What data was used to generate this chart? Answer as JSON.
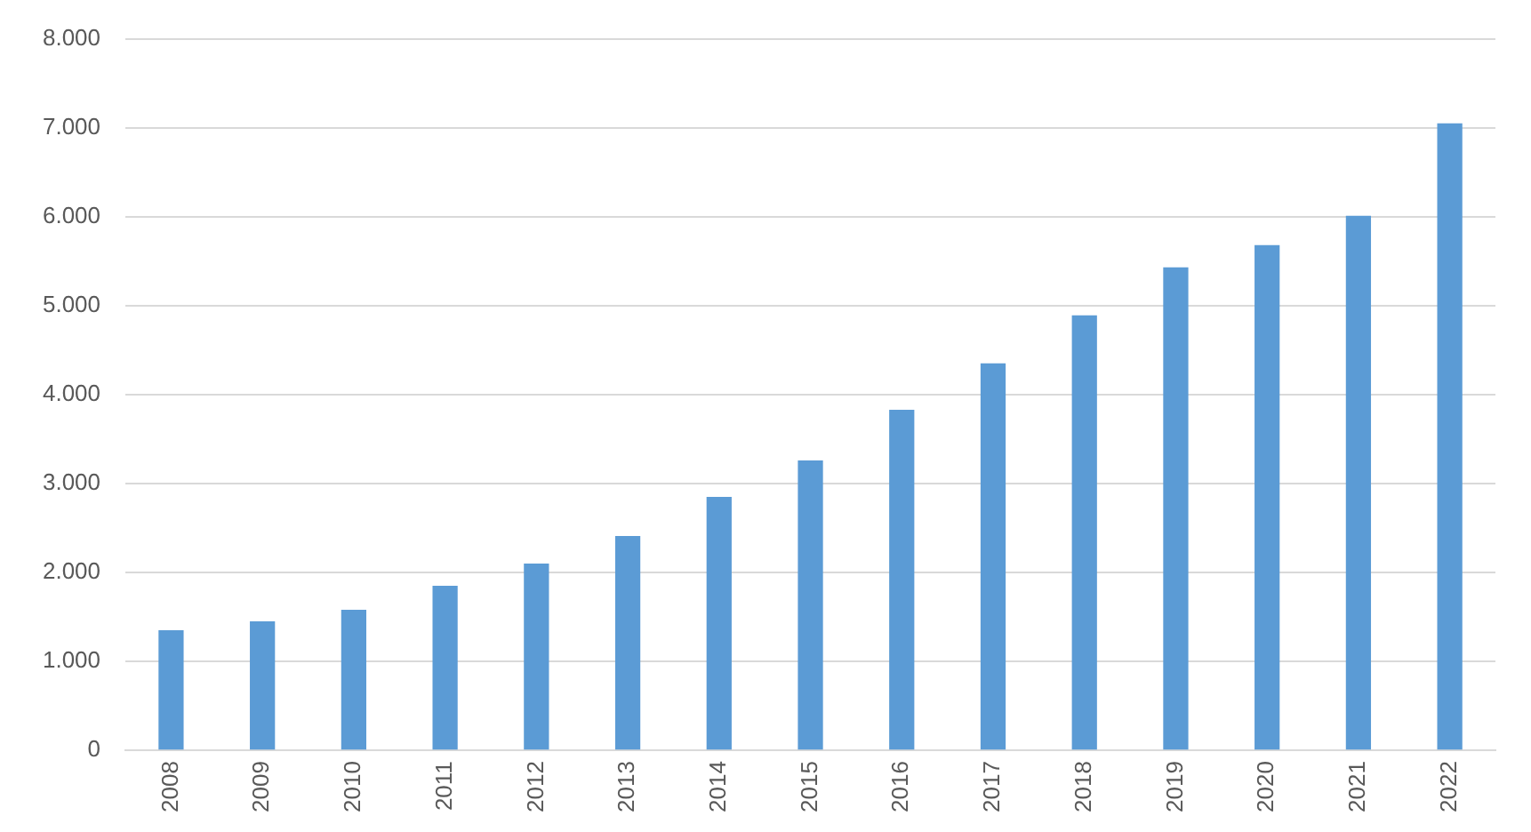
{
  "chart_data": {
    "type": "bar",
    "categories": [
      "2008",
      "2009",
      "2010",
      "2011",
      "2012",
      "2013",
      "2014",
      "2015",
      "2016",
      "2017",
      "2018",
      "2019",
      "2020",
      "2021",
      "2022"
    ],
    "values": [
      1350,
      1450,
      1580,
      1850,
      2100,
      2410,
      2850,
      3260,
      3830,
      4350,
      4890,
      5430,
      5680,
      6010,
      7050
    ],
    "color": "#5b9bd5",
    "ylim": [
      0,
      8000
    ],
    "yticks": [
      0,
      {
        "value": 1000,
        "label": "1.000"
      },
      {
        "value": 2000,
        "label": "2.000"
      },
      {
        "value": 3000,
        "label": "3.000"
      },
      {
        "value": 4000,
        "label": "4.000"
      },
      {
        "value": 5000,
        "label": "5.000"
      },
      {
        "value": 6000,
        "label": "6.000"
      },
      {
        "value": 7000,
        "label": "7.000"
      },
      {
        "value": 8000,
        "label": "8.000"
      }
    ],
    "grid": "y"
  }
}
